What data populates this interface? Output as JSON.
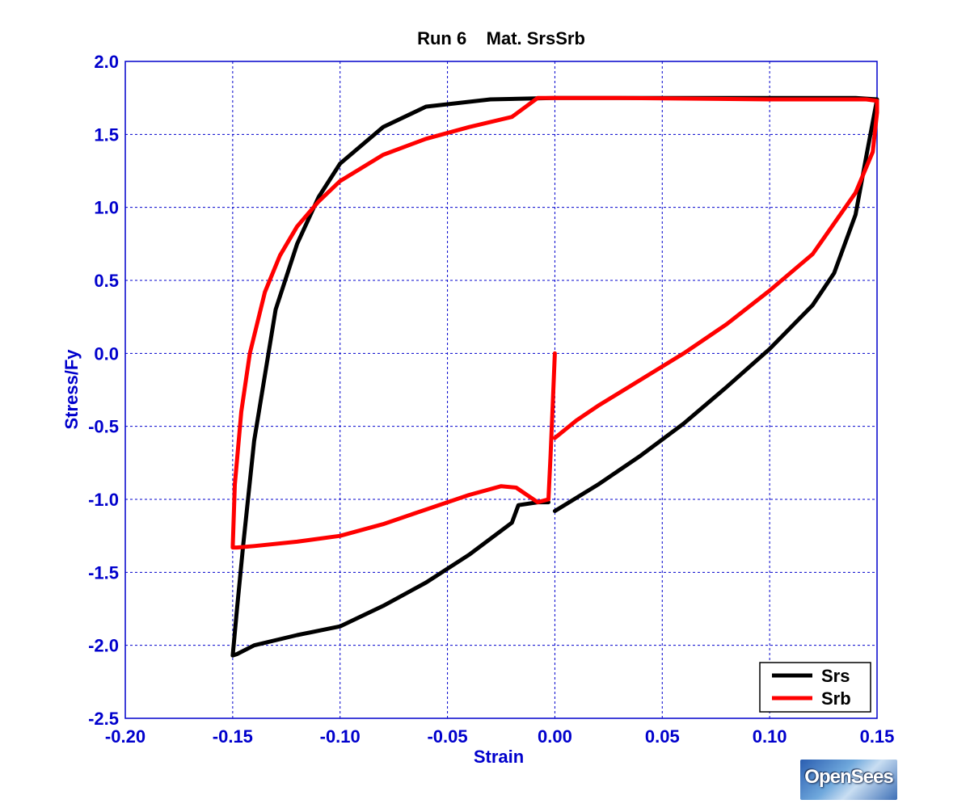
{
  "chart_data": {
    "type": "line",
    "title": "Run 6    Mat. SrsSrb",
    "xlabel": "Strain",
    "ylabel": "Stress/Fy",
    "xlim": [
      -0.2,
      0.15
    ],
    "ylim": [
      -2.5,
      2.0
    ],
    "xticks": [
      -0.2,
      -0.15,
      -0.1,
      -0.05,
      0.0,
      0.05,
      0.1,
      0.15
    ],
    "xtick_labels": [
      "-0.20",
      "-0.15",
      "-0.10",
      "-0.05",
      "0.00",
      "0.05",
      "0.10",
      "0.15"
    ],
    "yticks": [
      2.0,
      1.5,
      1.0,
      0.5,
      0.0,
      -0.5,
      -1.0,
      -1.5,
      -2.0,
      -2.5
    ],
    "ytick_labels": [
      "2.0",
      "1.5",
      "1.0",
      "0.5",
      "0.0",
      "-0.5",
      "-1.0",
      "-1.5",
      "-2.0",
      "-2.5"
    ],
    "grid": true,
    "legend_position": "bottom-right",
    "series": [
      {
        "name": "Srs",
        "color": "#000000",
        "x": [
          0.0,
          0.02,
          0.04,
          0.06,
          0.08,
          0.1,
          0.12,
          0.13,
          0.14,
          0.145,
          0.15,
          0.14,
          0.12,
          0.1,
          0.05,
          0.0,
          -0.03,
          -0.06,
          -0.08,
          -0.1,
          -0.11,
          -0.12,
          -0.13,
          -0.14,
          -0.145,
          -0.148,
          -0.15,
          -0.148,
          -0.14,
          -0.12,
          -0.1,
          -0.08,
          -0.06,
          -0.04,
          -0.02,
          -0.017,
          -0.008,
          -0.003
        ],
        "y": [
          -1.08,
          -0.9,
          -0.7,
          -0.48,
          -0.23,
          0.03,
          0.33,
          0.55,
          0.95,
          1.35,
          1.74,
          1.75,
          1.75,
          1.75,
          1.75,
          1.75,
          1.74,
          1.69,
          1.55,
          1.3,
          1.07,
          0.75,
          0.3,
          -0.6,
          -1.3,
          -1.75,
          -2.07,
          -2.06,
          -2.0,
          -1.93,
          -1.87,
          -1.73,
          -1.57,
          -1.38,
          -1.16,
          -1.04,
          -1.02,
          -1.02
        ]
      },
      {
        "name": "Srb",
        "color": "#ff0000",
        "x": [
          0.0,
          -0.001,
          -0.002,
          -0.003,
          -0.008,
          -0.013,
          -0.018,
          -0.025,
          -0.04,
          -0.06,
          -0.08,
          -0.1,
          -0.12,
          -0.14,
          -0.148,
          -0.15,
          -0.149,
          -0.146,
          -0.142,
          -0.135,
          -0.128,
          -0.12,
          -0.11,
          -0.1,
          -0.08,
          -0.06,
          -0.04,
          -0.02,
          -0.008,
          0.0,
          0.03,
          0.1,
          0.145,
          0.15,
          0.15,
          0.148,
          0.14,
          0.12,
          0.1,
          0.08,
          0.06,
          0.04,
          0.02,
          0.01,
          0.0
        ],
        "y": [
          0.0,
          -0.35,
          -0.7,
          -1.0,
          -1.02,
          -0.97,
          -0.92,
          -0.91,
          -0.97,
          -1.07,
          -1.17,
          -1.25,
          -1.29,
          -1.32,
          -1.33,
          -1.33,
          -0.9,
          -0.4,
          0.0,
          0.42,
          0.67,
          0.87,
          1.04,
          1.18,
          1.36,
          1.47,
          1.55,
          1.62,
          1.75,
          1.75,
          1.75,
          1.74,
          1.74,
          1.73,
          1.65,
          1.38,
          1.1,
          0.68,
          0.43,
          0.2,
          0.0,
          -0.18,
          -0.36,
          -0.46,
          -0.58
        ]
      }
    ]
  },
  "logo": {
    "text": "OpenSees"
  }
}
